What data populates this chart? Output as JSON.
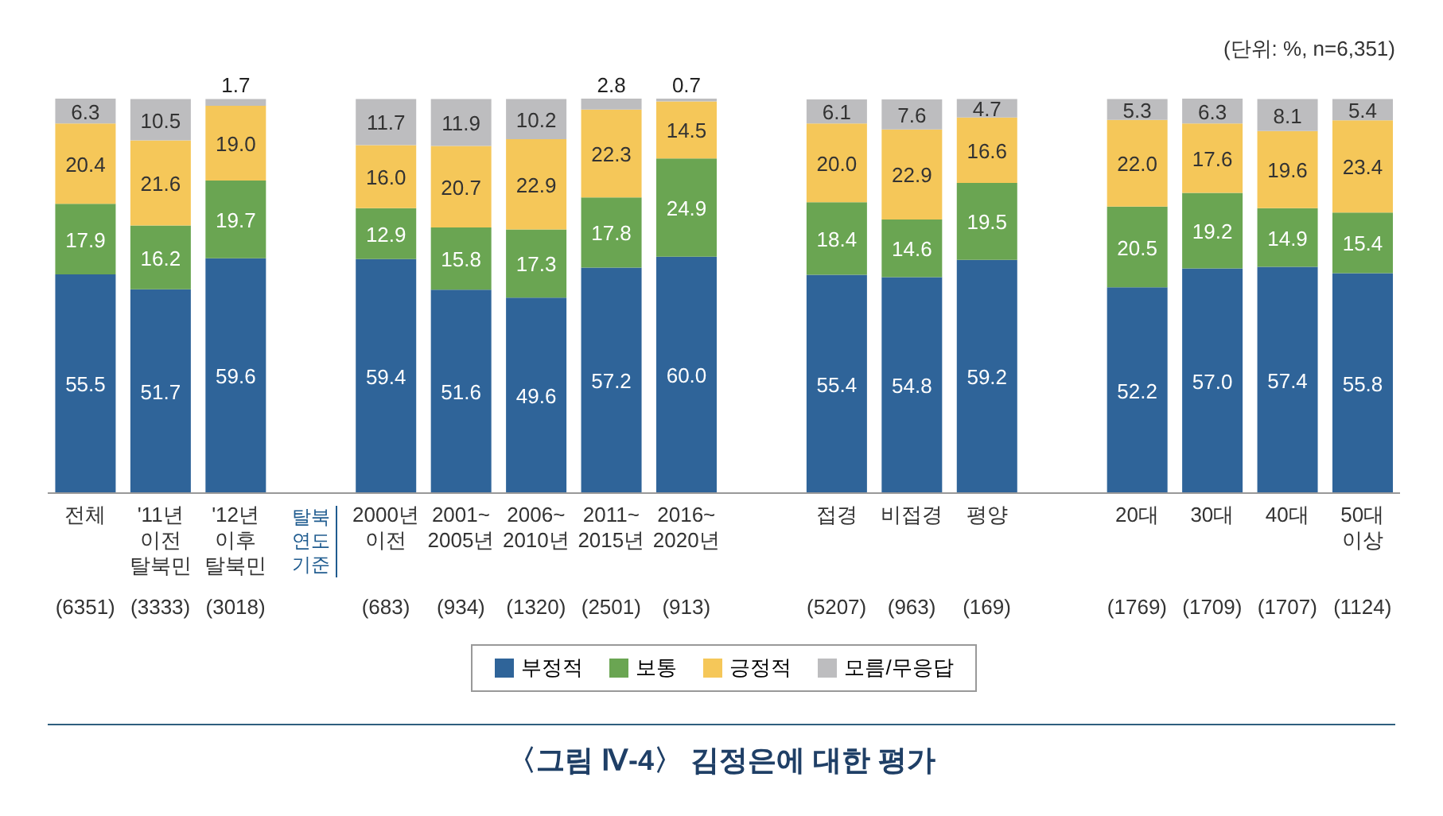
{
  "chart_data": {
    "type": "bar",
    "stacked": true,
    "legend": "bottom",
    "title": "〈그림 Ⅳ-4〉 김정은에 대한 평가",
    "annotations": [
      "(단위: %, n=6,351)",
      "탈북\n연도\n기준"
    ],
    "categories": [
      "전체\n(6351)",
      "'11년\n이전\n탈북민\n(3333)",
      "'12년\n이후\n탈북민\n(3018)",
      null,
      "2000년\n이전\n(683)",
      "2001~\n2005년\n(934)",
      "2006~\n2010년\n(1320)",
      "2011~\n2015년\n(2501)",
      "2016~\n2020년\n(913)",
      null,
      "접경\n(5207)",
      "비접경\n(963)",
      "평양\n(169)",
      null,
      "20대\n(1769)",
      "30대\n(1709)",
      "40대\n(1707)",
      "50대\n이상\n(1124)"
    ],
    "series": [
      {
        "name": "부정적",
        "color": "#2f6499",
        "values": [
          55.5,
          51.7,
          59.6,
          null,
          59.4,
          51.6,
          49.6,
          57.2,
          60.0,
          null,
          55.4,
          54.8,
          59.2,
          null,
          52.2,
          57.0,
          57.4,
          55.8
        ],
        "value_labels": [
          "55.5",
          "51.7",
          "59.6",
          null,
          "59.4",
          "51.6",
          "49.6",
          "57.2",
          "60.0",
          null,
          "55.4",
          "54.8",
          "59.2",
          null,
          "52.2",
          "57.0",
          "57.4",
          "55.8"
        ]
      },
      {
        "name": "보통",
        "color": "#6aa552",
        "values": [
          17.9,
          16.2,
          19.7,
          null,
          12.9,
          15.8,
          17.3,
          17.8,
          24.9,
          null,
          18.4,
          14.6,
          19.5,
          null,
          20.5,
          19.2,
          14.9,
          15.4
        ],
        "value_labels": [
          "17.9",
          "16.2",
          "19.7",
          null,
          "12.9",
          "15.8",
          "17.3",
          "17.8",
          "24.9",
          null,
          "18.4",
          "14.6",
          "19.5",
          null,
          "20.5",
          "19.2",
          "14.9",
          "15.4"
        ]
      },
      {
        "name": "긍정적",
        "color": "#f5c759",
        "values": [
          20.4,
          21.6,
          19.0,
          null,
          16.0,
          20.7,
          22.9,
          22.3,
          14.5,
          null,
          20.0,
          22.9,
          16.6,
          null,
          22.0,
          17.6,
          19.6,
          23.4
        ],
        "value_labels": [
          "20.4",
          "21.6",
          "19.0",
          null,
          "16.0",
          "20.7",
          "22.9",
          "22.3",
          "14.5",
          null,
          "20.0",
          "22.9",
          "16.6",
          null,
          "22.0",
          "17.6",
          "19.6",
          "23.4"
        ]
      },
      {
        "name": "모름/무응답",
        "color": "#bdbdbf",
        "values": [
          6.3,
          10.5,
          1.7,
          null,
          11.7,
          11.9,
          10.2,
          2.8,
          0.7,
          null,
          6.1,
          7.6,
          4.7,
          null,
          5.3,
          6.3,
          8.1,
          5.4
        ],
        "value_labels": [
          "6.3",
          "10.5",
          "1.7",
          null,
          "11.7",
          "11.9",
          "10.2",
          "2.8",
          "0.7",
          null,
          "6.1",
          "7.6",
          "4.7",
          null,
          "5.3",
          "6.3",
          "8.1",
          "5.4"
        ]
      }
    ]
  }
}
